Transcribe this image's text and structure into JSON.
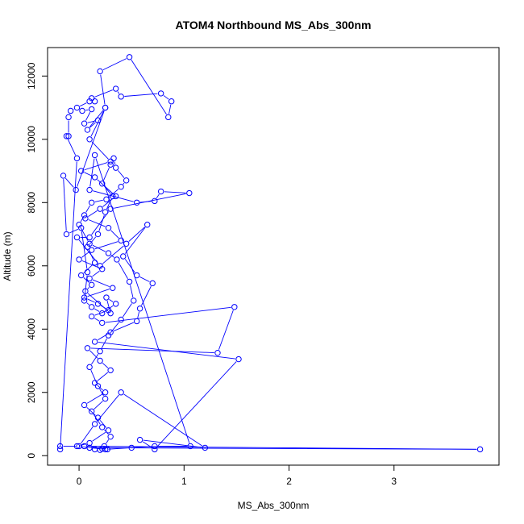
{
  "chart_data": {
    "type": "scatter",
    "title": "ATOM4 Northbound MS_Abs_300nm",
    "xlabel": "MS_Abs_300nm",
    "ylabel": "Altitude (m)",
    "xlim": [
      -0.3,
      4.0
    ],
    "ylim": [
      -300,
      12900
    ],
    "xticks": [
      0,
      1,
      2,
      3
    ],
    "yticks": [
      0,
      2000,
      4000,
      6000,
      8000,
      10000,
      12000
    ],
    "grid": false,
    "legend": "none",
    "series": [
      {
        "style": "points-connected",
        "color": "#0000ff",
        "points": [
          [
            0.03,
            10900
          ],
          [
            0.12,
            10950
          ],
          [
            0.05,
            10500
          ],
          [
            0.18,
            10600
          ],
          [
            0.08,
            10300
          ],
          [
            0.25,
            11000
          ],
          [
            0.1,
            10000
          ],
          [
            0.3,
            9300
          ],
          [
            0.02,
            9000
          ],
          [
            0.15,
            8800
          ],
          [
            0.35,
            8200
          ],
          [
            0.2,
            7800
          ],
          [
            0.06,
            7500
          ],
          [
            0.28,
            7200
          ],
          [
            0.4,
            6800
          ],
          [
            0.12,
            6500
          ],
          [
            0.0,
            6200
          ],
          [
            0.22,
            5900
          ],
          [
            0.1,
            5600
          ],
          [
            0.32,
            5300
          ],
          [
            0.05,
            5000
          ],
          [
            0.18,
            4800
          ],
          [
            0.28,
            4600
          ],
          [
            0.12,
            4400
          ],
          [
            0.22,
            4200
          ],
          [
            1.48,
            4700
          ],
          [
            1.32,
            3250
          ],
          [
            0.08,
            3400
          ],
          [
            0.2,
            3000
          ],
          [
            0.3,
            2700
          ],
          [
            0.15,
            2300
          ],
          [
            0.25,
            2000
          ],
          [
            0.05,
            1600
          ],
          [
            0.18,
            1200
          ],
          [
            0.28,
            800
          ],
          [
            0.1,
            400
          ],
          [
            -0.02,
            300
          ],
          [
            0.25,
            200
          ],
          [
            0.5,
            250
          ],
          [
            0.72,
            300
          ],
          [
            1.06,
            300
          ],
          [
            0.15,
            9500
          ],
          [
            0.1,
            8400
          ],
          [
            0.55,
            8000
          ],
          [
            0.72,
            8050
          ],
          [
            0.78,
            8350
          ],
          [
            1.05,
            8300
          ],
          [
            0.3,
            7800
          ],
          [
            0.1,
            6900
          ],
          [
            -0.02,
            6900
          ],
          [
            0.2,
            6000
          ],
          [
            0.45,
            6700
          ],
          [
            0.65,
            7300
          ],
          [
            0.42,
            6300
          ],
          [
            0.55,
            5700
          ],
          [
            0.7,
            5450
          ],
          [
            0.58,
            4650
          ],
          [
            0.55,
            4250
          ],
          [
            0.3,
            3900
          ],
          [
            0.15,
            3600
          ],
          [
            1.52,
            3050
          ],
          [
            0.72,
            200
          ],
          [
            0.58,
            500
          ],
          [
            1.2,
            250
          ],
          [
            0.4,
            2000
          ],
          [
            0.15,
            1000
          ],
          [
            0.0,
            300
          ],
          [
            -0.18,
            300
          ],
          [
            -0.18,
            200
          ],
          [
            -0.02,
            9400
          ],
          [
            -0.12,
            10100
          ],
          [
            -0.1,
            10100
          ],
          [
            -0.1,
            10700
          ],
          [
            -0.08,
            10900
          ],
          [
            -0.02,
            11000
          ],
          [
            0.1,
            11200
          ],
          [
            0.15,
            11200
          ],
          [
            0.12,
            11300
          ],
          [
            0.35,
            11600
          ],
          [
            0.4,
            11350
          ],
          [
            0.78,
            11450
          ],
          [
            0.88,
            11200
          ],
          [
            0.85,
            10700
          ],
          [
            0.48,
            12600
          ],
          [
            0.2,
            12150
          ],
          [
            0.25,
            11000
          ],
          [
            -0.03,
            8400
          ],
          [
            -0.15,
            8850
          ],
          [
            -0.12,
            7000
          ],
          [
            0.02,
            7200
          ],
          [
            0.08,
            5800
          ],
          [
            0.05,
            4900
          ],
          [
            0.12,
            4700
          ],
          [
            0.22,
            4500
          ],
          [
            0.35,
            4800
          ],
          [
            0.26,
            5000
          ],
          [
            0.3,
            4500
          ],
          [
            0.06,
            5200
          ],
          [
            0.12,
            5400
          ],
          [
            0.02,
            5700
          ],
          [
            0.15,
            6100
          ],
          [
            0.08,
            6600
          ],
          [
            0.18,
            7000
          ],
          [
            0.25,
            7700
          ],
          [
            0.32,
            8200
          ],
          [
            0.22,
            8600
          ],
          [
            0.3,
            9200
          ],
          [
            0.33,
            9400
          ],
          [
            0.35,
            9100
          ],
          [
            0.45,
            8700
          ],
          [
            0.4,
            8500
          ],
          [
            0.26,
            8100
          ],
          [
            0.12,
            8000
          ],
          [
            0.05,
            7600
          ],
          [
            0.0,
            7300
          ],
          [
            0.1,
            6700
          ],
          [
            0.28,
            6400
          ],
          [
            0.36,
            6200
          ],
          [
            0.48,
            5500
          ],
          [
            0.52,
            4900
          ],
          [
            0.4,
            4300
          ],
          [
            0.28,
            3800
          ],
          [
            0.2,
            3300
          ],
          [
            0.1,
            2800
          ],
          [
            0.18,
            2200
          ],
          [
            0.25,
            1800
          ],
          [
            0.12,
            1400
          ],
          [
            0.22,
            900
          ],
          [
            0.3,
            600
          ],
          [
            0.24,
            300
          ],
          [
            0.15,
            200
          ],
          [
            0.2,
            180
          ],
          [
            0.27,
            200
          ],
          [
            0.22,
            220
          ],
          [
            0.1,
            250
          ],
          [
            0.05,
            300
          ],
          [
            3.82,
            200
          ],
          [
            0.1,
            250
          ]
        ]
      }
    ]
  }
}
